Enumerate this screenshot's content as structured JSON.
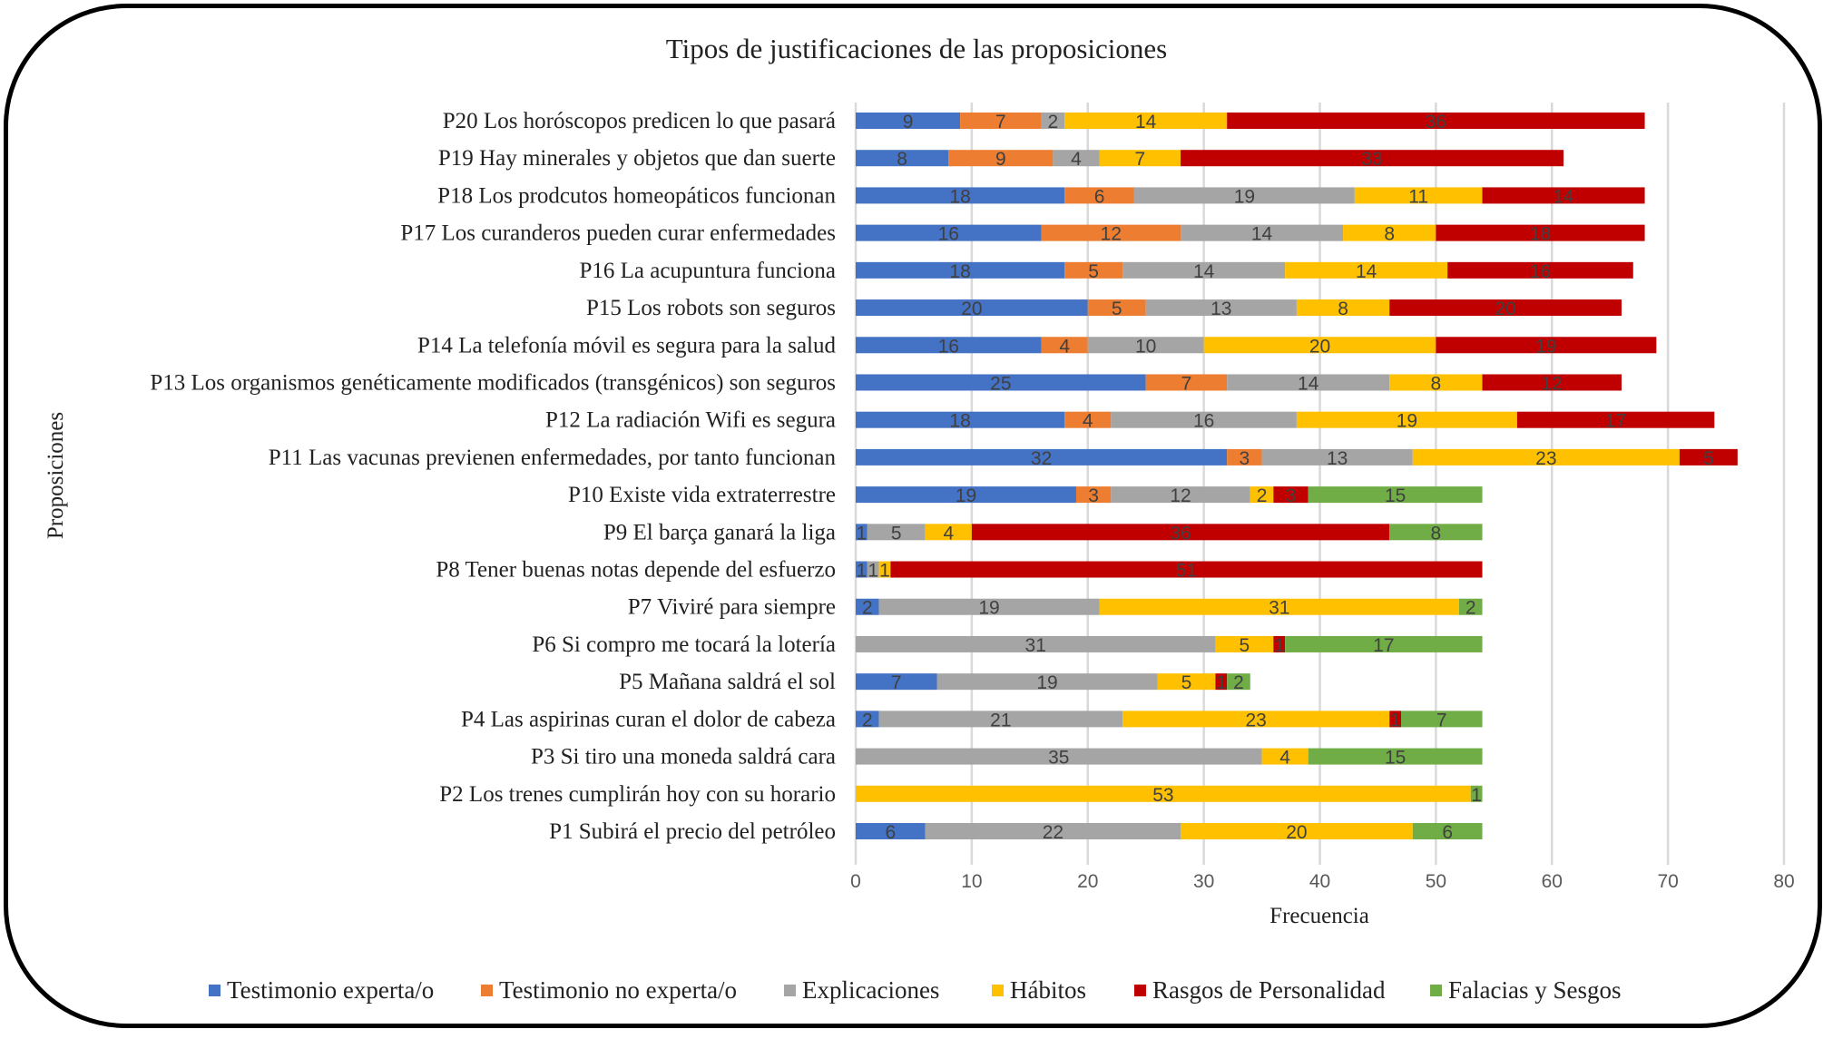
{
  "chart_data": {
    "type": "bar",
    "orientation": "horizontal",
    "stacked": true,
    "title": "Tipos de justificaciones de las proposiciones",
    "xlabel": "Frecuencia",
    "ylabel": "Proposiciones",
    "xlim": [
      0,
      80
    ],
    "xticks": [
      0,
      10,
      20,
      30,
      40,
      50,
      60,
      70,
      80
    ],
    "grid": true,
    "legend_position": "bottom",
    "categories": [
      "P1 Subirá el precio del petróleo",
      "P2 Los trenes cumplirán hoy con su horario",
      "P3 Si tiro una moneda saldrá cara",
      "P4 Las aspirinas curan el dolor de cabeza",
      "P5 Mañana saldrá el sol",
      "P6 Si compro me tocará la lotería",
      "P7 Viviré para siempre",
      "P8 Tener buenas notas depende del esfuerzo",
      "P9 El barça ganará la liga",
      "P10 Existe vida extraterrestre",
      "P11 Las vacunas previenen enfermedades, por tanto funcionan",
      "P12 La radiación Wifi es segura",
      "P13 Los organismos genéticamente modificados (transgénicos) son seguros",
      "P14 La telefonía móvil es segura para la salud",
      "P15 Los robots son seguros",
      "P16 La acupuntura funciona",
      "P17 Los curanderos pueden curar enfermedades",
      "P18 Los prodcutos homeopáticos funcionan",
      "P19 Hay minerales y objetos que dan suerte",
      "P20 Los horóscopos predicen lo que pasará"
    ],
    "series": [
      {
        "name": "Testimonio experta/o",
        "color": "#4472C4",
        "values": [
          6,
          0,
          0,
          2,
          7,
          0,
          2,
          1,
          1,
          19,
          32,
          18,
          25,
          16,
          20,
          18,
          16,
          18,
          8,
          9
        ]
      },
      {
        "name": "Testimonio no experta/o",
        "color": "#ED7D31",
        "values": [
          0,
          0,
          0,
          0,
          0,
          0,
          0,
          0,
          0,
          3,
          3,
          4,
          7,
          4,
          5,
          5,
          12,
          6,
          9,
          7
        ]
      },
      {
        "name": "Explicaciones",
        "color": "#A5A5A5",
        "values": [
          22,
          0,
          35,
          21,
          19,
          31,
          19,
          1,
          5,
          12,
          13,
          16,
          14,
          10,
          13,
          14,
          14,
          19,
          4,
          2
        ]
      },
      {
        "name": "Hábitos",
        "color": "#FFC000",
        "values": [
          20,
          53,
          4,
          23,
          5,
          5,
          31,
          1,
          4,
          2,
          23,
          19,
          8,
          20,
          8,
          14,
          8,
          11,
          7,
          14
        ]
      },
      {
        "name": "Rasgos de Personalidad",
        "color": "#C00000",
        "values": [
          0,
          0,
          0,
          1,
          1,
          1,
          0,
          51,
          36,
          3,
          5,
          17,
          12,
          19,
          20,
          16,
          18,
          14,
          33,
          36
        ]
      },
      {
        "name": "Falacias y Sesgos",
        "color": "#70AD47",
        "values": [
          6,
          1,
          15,
          7,
          2,
          17,
          2,
          0,
          8,
          15,
          0,
          0,
          0,
          0,
          0,
          0,
          0,
          0,
          0,
          0
        ]
      }
    ]
  }
}
